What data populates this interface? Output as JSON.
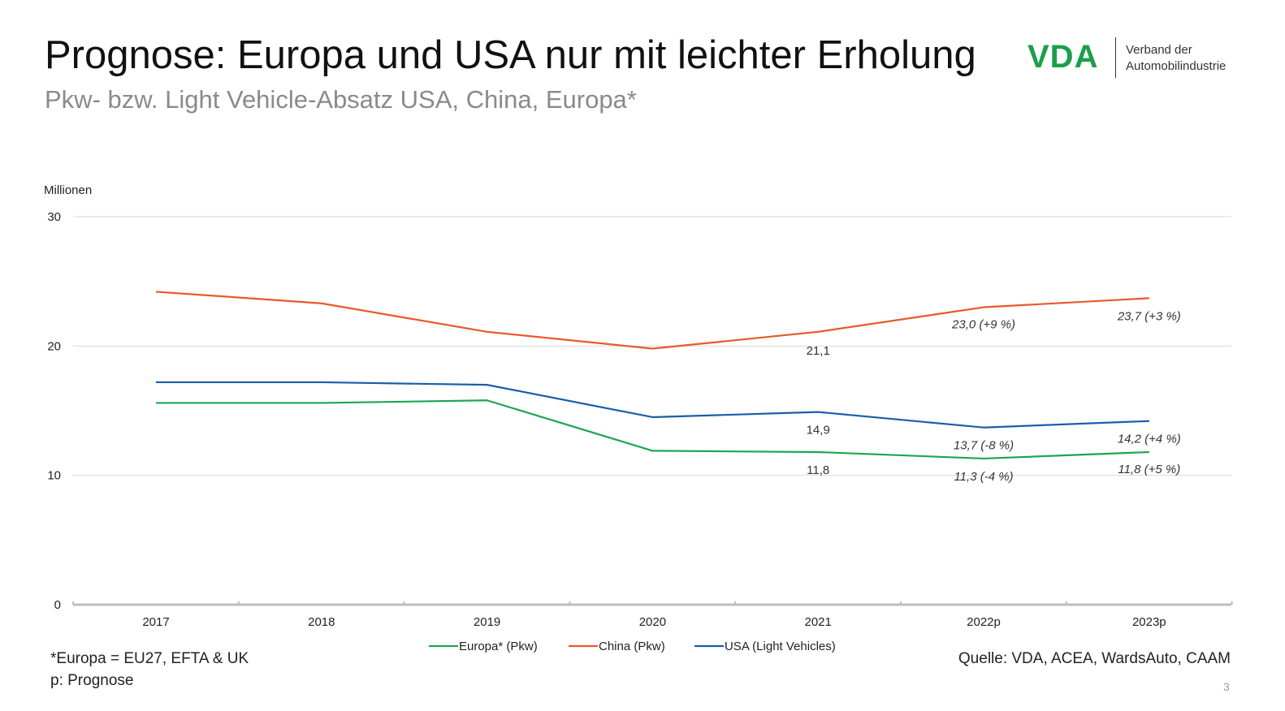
{
  "slide": {
    "title": "Prognose: Europa und USA nur mit leichter Erholung",
    "subtitle": "Pkw- bzw. Light Vehicle-Absatz USA, China, Europa*",
    "logo_mark": "VDA",
    "logo_text_line1": "Verband der",
    "logo_text_line2": "Automobilindustrie",
    "footnote_1": "*Europa = EU27, EFTA & UK",
    "footnote_2": "p: Prognose",
    "source": "Quelle: VDA, ACEA, WardsAuto, CAAM",
    "page_number": "3"
  },
  "chart_data": {
    "type": "line",
    "title": "",
    "ylabel": "Millionen",
    "xlabel": "",
    "categories": [
      "2017",
      "2018",
      "2019",
      "2020",
      "2021",
      "2022p",
      "2023p"
    ],
    "ylim": [
      0,
      30
    ],
    "yticks": [
      0,
      10,
      20,
      30
    ],
    "grid": true,
    "legend_position": "bottom",
    "series": [
      {
        "name": "Europa* (Pkw)",
        "color": "#1ea552",
        "values": [
          15.6,
          15.6,
          15.8,
          11.9,
          11.8,
          11.3,
          11.8
        ],
        "labels": [
          "",
          "",
          "",
          "",
          "11,8",
          "11,3 (-4 %)",
          "11,8 (+5 %)"
        ]
      },
      {
        "name": "China (Pkw)",
        "color": "#e8582a",
        "values": [
          24.2,
          23.3,
          21.1,
          19.8,
          21.1,
          23.0,
          23.7
        ],
        "labels": [
          "",
          "",
          "",
          "",
          "21,1",
          "23,0 (+9 %)",
          "23,7 (+3 %)"
        ]
      },
      {
        "name": "USA (Light Vehicles)",
        "color": "#1a5ea8",
        "values": [
          17.2,
          17.2,
          17.0,
          14.5,
          14.9,
          13.7,
          14.2
        ],
        "labels": [
          "",
          "",
          "",
          "",
          "14,9",
          "13,7 (-8 %)",
          "14,2 (+4 %)"
        ]
      }
    ]
  }
}
